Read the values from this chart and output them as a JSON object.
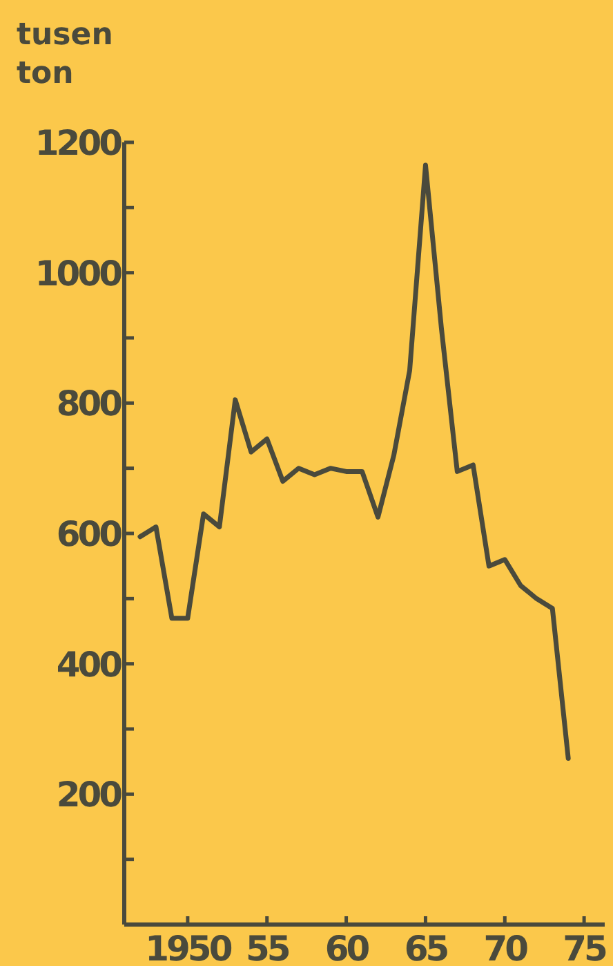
{
  "chart_data": {
    "type": "line",
    "ylabel": "tusen ton",
    "x": [
      1947,
      1948,
      1949,
      1950,
      1951,
      1952,
      1953,
      1954,
      1955,
      1956,
      1957,
      1958,
      1959,
      1960,
      1961,
      1962,
      1963,
      1964,
      1965,
      1966,
      1967,
      1968,
      1969,
      1970,
      1971,
      1972,
      1973,
      1974
    ],
    "series": [
      {
        "color": "#4a4a3c",
        "values": [
          595,
          610,
          470,
          470,
          630,
          610,
          805,
          725,
          745,
          680,
          700,
          690,
          700,
          695,
          695,
          625,
          720,
          850,
          1165,
          915,
          695,
          705,
          550,
          560,
          520,
          500,
          485,
          255
        ]
      }
    ],
    "xlim": [
      1946,
      1976.3
    ],
    "xticks": [
      1950,
      {
        "value": 1955,
        "label": "55"
      },
      {
        "value": 1960,
        "label": "60"
      },
      {
        "value": 1965,
        "label": "65"
      },
      {
        "value": 1970,
        "label": "70"
      },
      {
        "value": 1975,
        "label": "75"
      }
    ],
    "ylim": [
      0,
      1200
    ],
    "yticks": [
      {
        "value": 100,
        "label": null
      },
      200,
      {
        "value": 300,
        "label": null
      },
      400,
      {
        "value": 500,
        "label": null
      },
      600,
      {
        "value": 700,
        "label": null
      },
      800,
      {
        "value": 900,
        "label": null
      },
      1000,
      {
        "value": 1100,
        "label": null
      },
      1200
    ],
    "grid": false,
    "marker": "none",
    "line_style": "solid"
  }
}
